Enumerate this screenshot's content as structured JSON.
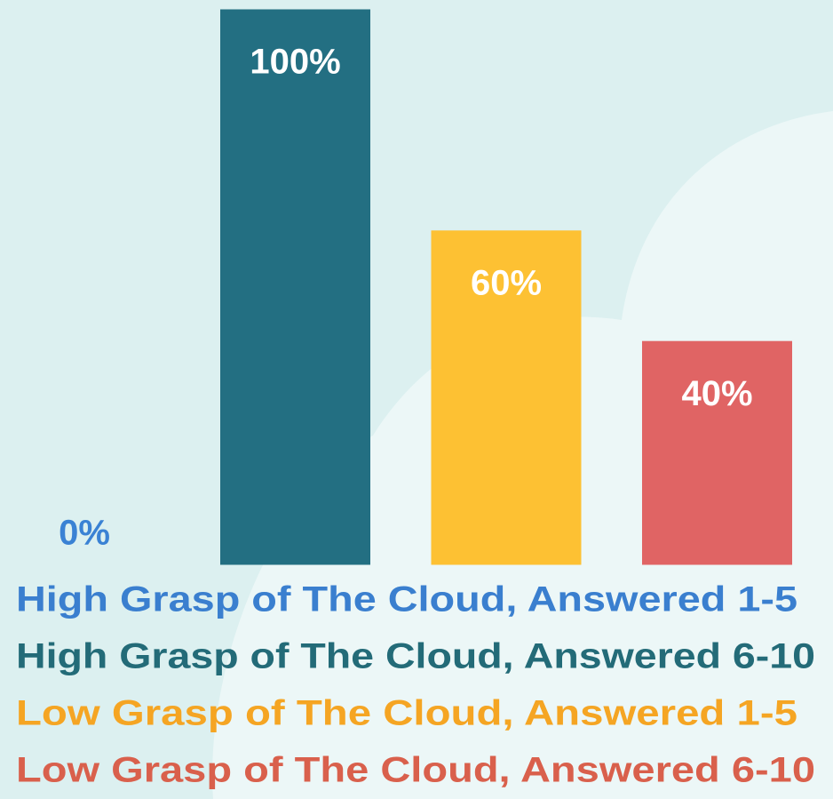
{
  "chart_data": {
    "type": "bar",
    "categories": [
      "High Grasp of The Cloud, Answered 1-5",
      "High Grasp of The Cloud, Answered 6-10",
      "Low Grasp of The Cloud, Answered 1-5",
      "Low Grasp of The Cloud, Answered 6-10"
    ],
    "values": [
      0,
      100,
      60,
      40
    ],
    "value_labels": [
      "0%",
      "100%",
      "60%",
      "40%"
    ],
    "colors": [
      "#3a82d4",
      "#236f82",
      "#fdc133",
      "#e06464"
    ],
    "legend_colors": [
      "#3a7fcf",
      "#236b78",
      "#f5a523",
      "#d9604c"
    ],
    "ylim": [
      0,
      100
    ]
  }
}
